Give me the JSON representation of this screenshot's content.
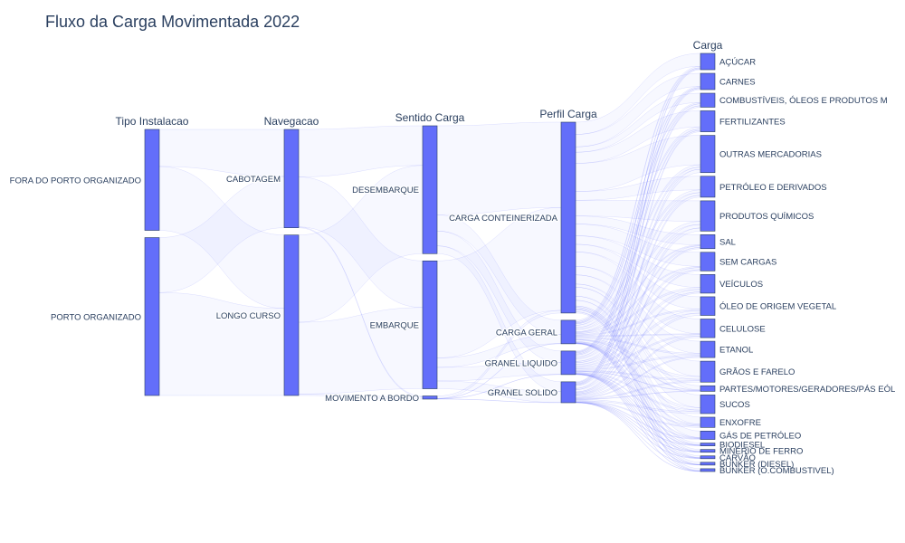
{
  "chart_data": {
    "type": "parallel_categories",
    "title": "Fluxo da Carga Movimentada 2022",
    "color": "#636efa",
    "dimensions": [
      {
        "name": "Tipo Instalacao",
        "categories": [
          {
            "label": "FORA DO PORTO ORGANIZADO",
            "share": 0.39
          },
          {
            "label": "PORTO ORGANIZADO",
            "share": 0.61
          }
        ]
      },
      {
        "name": "Navegacao",
        "categories": [
          {
            "label": "CABOTAGEM",
            "share": 0.38
          },
          {
            "label": "LONGO CURSO",
            "share": 0.62
          }
        ]
      },
      {
        "name": "Sentido Carga",
        "categories": [
          {
            "label": "DESEMBARQUE",
            "share": 0.49
          },
          {
            "label": "EMBARQUE",
            "share": 0.49
          },
          {
            "label": "MOVIMENTO A BORDO",
            "share": 0.012
          }
        ]
      },
      {
        "name": "Perfil Carga",
        "categories": [
          {
            "label": "CARGA CONTEINERIZADA",
            "share": 0.73
          },
          {
            "label": "CARGA GERAL",
            "share": 0.09
          },
          {
            "label": "GRANEL LIQUIDO",
            "share": 0.09
          },
          {
            "label": "GRANEL SOLIDO",
            "share": 0.08
          }
        ]
      },
      {
        "name": "Carga",
        "categories": [
          {
            "label": "AÇÚCAR",
            "share": 0.035
          },
          {
            "label": "CARNES",
            "share": 0.035
          },
          {
            "label": "COMBUSTÍVEIS, ÓLEOS E PRODUTOS M",
            "share": 0.03
          },
          {
            "label": "FERTILIZANTES",
            "share": 0.045
          },
          {
            "label": "OUTRAS MERCADORIAS",
            "share": 0.08
          },
          {
            "label": "PETRÓLEO E DERIVADOS",
            "share": 0.045
          },
          {
            "label": "PRODUTOS QUÍMICOS",
            "share": 0.065
          },
          {
            "label": "SAL",
            "share": 0.03
          },
          {
            "label": "SEM CARGAS",
            "share": 0.04
          },
          {
            "label": "VEÍCULOS",
            "share": 0.04
          },
          {
            "label": "ÓLEO DE ORIGEM VEGETAL",
            "share": 0.04
          },
          {
            "label": "CELULOSE",
            "share": 0.04
          },
          {
            "label": "ETANOL",
            "share": 0.035
          },
          {
            "label": "GRÃOS E FARELO",
            "share": 0.045
          },
          {
            "label": "PARTES/MOTORES/GERADORES/PÁS EÓL",
            "share": 0.012
          },
          {
            "label": "SUCOS",
            "share": 0.04
          },
          {
            "label": "ENXOFRE",
            "share": 0.022
          },
          {
            "label": "GÁS DE PETRÓLEO",
            "share": 0.018
          },
          {
            "label": "BIODIESEL",
            "share": 0.006
          },
          {
            "label": "MINÉRIO DE FERRO",
            "share": 0.006
          },
          {
            "label": "CARVÃO",
            "share": 0.006
          },
          {
            "label": "BUNKER (DIESEL)",
            "share": 0.006
          },
          {
            "label": "BUNKER (O.COMBUSTIVEL)",
            "share": 0.006
          }
        ]
      }
    ]
  }
}
